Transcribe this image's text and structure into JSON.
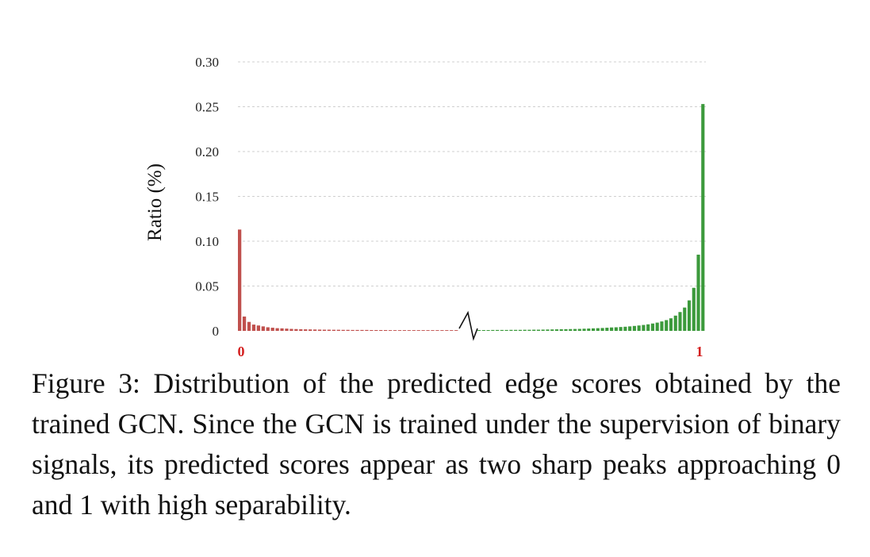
{
  "chart_data": {
    "type": "bar",
    "ylabel": "Ratio (%)",
    "yticks": [
      "0",
      "0.05",
      "0.10",
      "0.15",
      "0.20",
      "0.25",
      "0.30"
    ],
    "ylim": [
      0,
      0.3
    ],
    "grid": "horizontal dashed",
    "axis_break": true,
    "x_end_labels": {
      "left": "0",
      "right": "1"
    },
    "series": [
      {
        "color": "#c0504d",
        "values": [
          0.113,
          0.016,
          0.01,
          0.007,
          0.006,
          0.005,
          0.004,
          0.0035,
          0.003,
          0.0028,
          0.0025,
          0.0022,
          0.002,
          0.0018,
          0.0017,
          0.0016,
          0.0015,
          0.0014,
          0.0013,
          0.0013,
          0.0012,
          0.0012,
          0.0011,
          0.0011,
          0.001,
          0.001,
          0.001,
          0.001,
          0.0009,
          0.0009,
          0.0009,
          0.0009,
          0.0008,
          0.0008,
          0.0008,
          0.0008,
          0.0008,
          0.0008,
          0.0008,
          0.0008,
          0.0008,
          0.0008,
          0.0008,
          0.0008,
          0.0008,
          0.0008,
          0.0008
        ]
      },
      {
        "color": "#3c9a3c",
        "values": [
          0.0009,
          0.0009,
          0.0009,
          0.001,
          0.001,
          0.001,
          0.001,
          0.0011,
          0.0011,
          0.0011,
          0.0012,
          0.0012,
          0.0013,
          0.0013,
          0.0014,
          0.0015,
          0.0016,
          0.0017,
          0.0018,
          0.0019,
          0.002,
          0.0021,
          0.0022,
          0.0024,
          0.0026,
          0.0028,
          0.003,
          0.0032,
          0.0035,
          0.0038,
          0.004,
          0.0043,
          0.0046,
          0.005,
          0.0055,
          0.006,
          0.0066,
          0.0073,
          0.0082,
          0.0092,
          0.0105,
          0.012,
          0.014,
          0.017,
          0.021,
          0.026,
          0.034,
          0.048,
          0.085,
          0.253
        ]
      }
    ]
  },
  "caption": "Figure 3: Distribution of the predicted edge scores obtained by the trained GCN. Since the GCN is trained under the supervision of binary signals, its predicted scores appear as two sharp peaks approaching 0 and 1 with high separability."
}
